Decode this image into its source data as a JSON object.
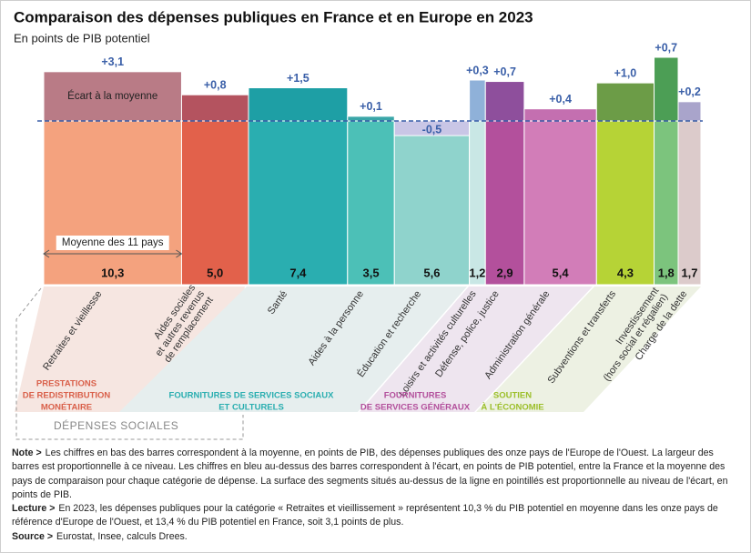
{
  "chart_data": {
    "type": "bar",
    "title": "Comparaison des dépenses publiques en France et en Europe en 2023",
    "subtitle": "En points de PIB potentiel",
    "categories": [
      [
        "Retraites et vieillesse"
      ],
      [
        "Aides sociales",
        "et autres revenus",
        "de remplacement"
      ],
      [
        "Santé"
      ],
      [
        "Aides à la personne"
      ],
      [
        "Éducation et recherche"
      ],
      [
        "Loisirs et activités culturelles"
      ],
      [
        "Défense, police, justice"
      ],
      [
        "Administration générale"
      ],
      [
        "Subventions et transferts"
      ],
      [
        "Investissement",
        "(hors social et régalien)"
      ],
      [
        "Charge de la dette"
      ]
    ],
    "means": [
      10.3,
      5.0,
      7.4,
      3.5,
      5.6,
      1.2,
      2.9,
      5.4,
      4.3,
      1.8,
      1.7
    ],
    "mean_labels": [
      "10,3",
      "5,0",
      "7,4",
      "3,5",
      "5,6",
      "1,2",
      "2,9",
      "5,4",
      "4,3",
      "1,8",
      "1,7"
    ],
    "values": [
      3.1,
      0.8,
      1.5,
      0.1,
      -0.5,
      0.3,
      0.7,
      0.4,
      1.0,
      0.7,
      0.2
    ],
    "value_labels": [
      "+3,1",
      "+0,8",
      "+1,5",
      "+0,1",
      "-0,5",
      "+0,3",
      "+0,7",
      "+0,4",
      "+1,0",
      "+0,7",
      "+0,2"
    ],
    "colors": [
      "#f4a27e",
      "#e2614b",
      "#2aaeb0",
      "#4cc0b7",
      "#8fd3cc",
      "#c9e7e5",
      "#b3509c",
      "#d27db8",
      "#b6d336",
      "#7cc47d",
      "#dccbcb"
    ],
    "ecart_colors": [
      "#b97b86",
      "#b4535f",
      "#1e9fa5",
      "#3aa6a8",
      "#c9c6e6",
      "#8fb1d9",
      "#8e4f9c",
      "#c46fb0",
      "#6c9c47",
      "#4c9e55",
      "#a9a4cb"
    ],
    "annotations": {
      "ecart": "Écart à la moyenne",
      "mean": "Moyenne des 11 pays"
    },
    "groups": [
      {
        "lines": [
          "PRESTATIONS",
          "DE REDISTRIBUTION",
          "MONÉTAIRE"
        ],
        "color": "#d9604a"
      },
      {
        "lines": [
          "FOURNITURES DE SERVICES SOCIAUX",
          "ET CULTURELS"
        ],
        "color": "#2aaeb0"
      },
      {
        "lines": [
          "FOURNITURES",
          "DE SERVICES GÉNÉRAUX"
        ],
        "color": "#b3509c"
      },
      {
        "lines": [
          "SOUTIEN",
          "À L'ÉCONOMIE"
        ],
        "color": "#9cbf2a"
      }
    ],
    "social_label": "DÉPENSES SOCIALES"
  },
  "notes": [
    {
      "label": "Note >",
      "text": "Les chiffres en bas des barres correspondent à la moyenne, en points de PIB, des dépenses publiques des onze pays de l'Europe de l'Ouest. La largeur des barres est proportionnelle à ce niveau. Les chiffres en bleu au-dessus des barres correspondent à l'écart, en points de PIB potentiel, entre la France et la moyenne des pays de comparaison pour chaque catégorie de dépense. La surface des segments situés au-dessus de la ligne en pointillés est proportionnelle au niveau de l'écart, en points de PIB."
    },
    {
      "label": "Lecture >",
      "text": "En 2023, les dépenses publiques pour la catégorie « Retraites et vieillissement » représentent 10,3 % du PIB potentiel en moyenne dans les onze pays de référence d'Europe de l'Ouest, et 13,4 % du PIB potentiel en France, soit 3,1 points de plus."
    },
    {
      "label": "Source >",
      "text": "Eurostat, Insee, calculs Drees."
    }
  ]
}
